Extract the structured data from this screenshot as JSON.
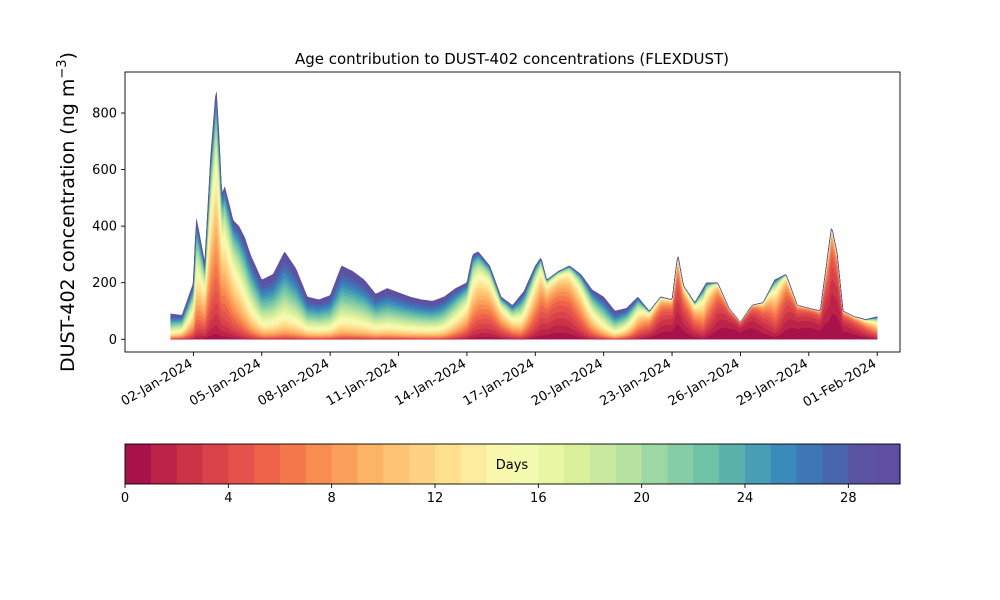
{
  "chart_data": {
    "type": "area",
    "stacked": true,
    "title": "Age contribution to DUST-402 concentrations (FLEXDUST)",
    "ylabel": "DUST-402 concentration (ng m",
    "ylabel_sup": "−3",
    "ylabel_close": ")",
    "xlabel": "",
    "x_start": "2024-01-01",
    "x_end": "2024-01-31",
    "xlim": [
      "2023-12-30",
      "2024-02-02"
    ],
    "ylim": [
      -45,
      945
    ],
    "y_ticks": [
      0,
      200,
      400,
      600,
      800
    ],
    "x_ticks": [
      {
        "date": "2024-01-02",
        "label": "02-Jan-2024"
      },
      {
        "date": "2024-01-05",
        "label": "05-Jan-2024"
      },
      {
        "date": "2024-01-08",
        "label": "08-Jan-2024"
      },
      {
        "date": "2024-01-11",
        "label": "11-Jan-2024"
      },
      {
        "date": "2024-01-14",
        "label": "14-Jan-2024"
      },
      {
        "date": "2024-01-17",
        "label": "17-Jan-2024"
      },
      {
        "date": "2024-01-20",
        "label": "20-Jan-2024"
      },
      {
        "date": "2024-01-23",
        "label": "23-Jan-2024"
      },
      {
        "date": "2024-01-26",
        "label": "26-Jan-2024"
      },
      {
        "date": "2024-01-29",
        "label": "29-Jan-2024"
      },
      {
        "date": "2024-02-01",
        "label": "01-Feb-2024"
      }
    ],
    "total": [
      [
        "2024-01-01 00:00",
        90
      ],
      [
        "2024-01-01 12:00",
        85
      ],
      [
        "2024-01-02 00:00",
        200
      ],
      [
        "2024-01-02 03:00",
        430
      ],
      [
        "2024-01-02 06:00",
        380
      ],
      [
        "2024-01-02 12:00",
        270
      ],
      [
        "2024-01-02 18:00",
        640
      ],
      [
        "2024-01-03 00:00",
        895
      ],
      [
        "2024-01-03 03:00",
        720
      ],
      [
        "2024-01-03 06:00",
        510
      ],
      [
        "2024-01-03 09:00",
        540
      ],
      [
        "2024-01-03 18:00",
        420
      ],
      [
        "2024-01-04 00:00",
        400
      ],
      [
        "2024-01-04 06:00",
        360
      ],
      [
        "2024-01-04 12:00",
        300
      ],
      [
        "2024-01-05 00:00",
        210
      ],
      [
        "2024-01-05 12:00",
        230
      ],
      [
        "2024-01-06 00:00",
        310
      ],
      [
        "2024-01-06 12:00",
        250
      ],
      [
        "2024-01-07 00:00",
        150
      ],
      [
        "2024-01-07 12:00",
        140
      ],
      [
        "2024-01-08 00:00",
        155
      ],
      [
        "2024-01-08 12:00",
        260
      ],
      [
        "2024-01-09 00:00",
        240
      ],
      [
        "2024-01-09 12:00",
        210
      ],
      [
        "2024-01-10 00:00",
        160
      ],
      [
        "2024-01-10 12:00",
        180
      ],
      [
        "2024-01-11 00:00",
        165
      ],
      [
        "2024-01-11 12:00",
        150
      ],
      [
        "2024-01-12 00:00",
        140
      ],
      [
        "2024-01-12 12:00",
        135
      ],
      [
        "2024-01-13 00:00",
        150
      ],
      [
        "2024-01-13 12:00",
        180
      ],
      [
        "2024-01-14 00:00",
        200
      ],
      [
        "2024-01-14 06:00",
        300
      ],
      [
        "2024-01-14 12:00",
        310
      ],
      [
        "2024-01-15 00:00",
        260
      ],
      [
        "2024-01-15 12:00",
        150
      ],
      [
        "2024-01-16 00:00",
        120
      ],
      [
        "2024-01-16 12:00",
        170
      ],
      [
        "2024-01-17 00:00",
        260
      ],
      [
        "2024-01-17 06:00",
        290
      ],
      [
        "2024-01-17 12:00",
        210
      ],
      [
        "2024-01-18 00:00",
        240
      ],
      [
        "2024-01-18 12:00",
        260
      ],
      [
        "2024-01-19 00:00",
        230
      ],
      [
        "2024-01-19 12:00",
        175
      ],
      [
        "2024-01-20 00:00",
        150
      ],
      [
        "2024-01-20 12:00",
        100
      ],
      [
        "2024-01-21 00:00",
        110
      ],
      [
        "2024-01-21 12:00",
        150
      ],
      [
        "2024-01-22 00:00",
        100
      ],
      [
        "2024-01-22 12:00",
        150
      ],
      [
        "2024-01-23 00:00",
        140
      ],
      [
        "2024-01-23 06:00",
        300
      ],
      [
        "2024-01-23 12:00",
        190
      ],
      [
        "2024-01-24 00:00",
        130
      ],
      [
        "2024-01-24 12:00",
        200
      ],
      [
        "2024-01-25 00:00",
        200
      ],
      [
        "2024-01-25 12:00",
        110
      ],
      [
        "2024-01-26 00:00",
        60
      ],
      [
        "2024-01-26 12:00",
        120
      ],
      [
        "2024-01-27 00:00",
        130
      ],
      [
        "2024-01-27 12:00",
        210
      ],
      [
        "2024-01-28 00:00",
        230
      ],
      [
        "2024-01-28 12:00",
        120
      ],
      [
        "2024-01-29 00:00",
        110
      ],
      [
        "2024-01-29 12:00",
        100
      ],
      [
        "2024-01-30 00:00",
        400
      ],
      [
        "2024-01-30 06:00",
        300
      ],
      [
        "2024-01-30 12:00",
        100
      ],
      [
        "2024-01-31 00:00",
        80
      ],
      [
        "2024-01-31 12:00",
        70
      ],
      [
        "2024-02-01 00:00",
        80
      ]
    ],
    "colorbar": {
      "label": "Days",
      "min": 0,
      "max": 30,
      "ticks": [
        0,
        4,
        8,
        12,
        16,
        20,
        24,
        28
      ],
      "colors": [
        "#a8124a",
        "#bd2248",
        "#cd3347",
        "#d94349",
        "#e4524b",
        "#ed6249",
        "#f4784a",
        "#f88d51",
        "#fba05b",
        "#fdb366",
        "#fec373",
        "#fed282",
        "#fee08f",
        "#feec9e",
        "#f9f6ae",
        "#f4fab0",
        "#e9f6a3",
        "#daf09b",
        "#c8e99e",
        "#b5e1a1",
        "#9dd7a4",
        "#84cda5",
        "#6dc3a5",
        "#5ab1aa",
        "#489eb3",
        "#3a8abb",
        "#3f77b6",
        "#4965ad",
        "#5a54a3",
        "#5e4fa2"
      ]
    }
  }
}
